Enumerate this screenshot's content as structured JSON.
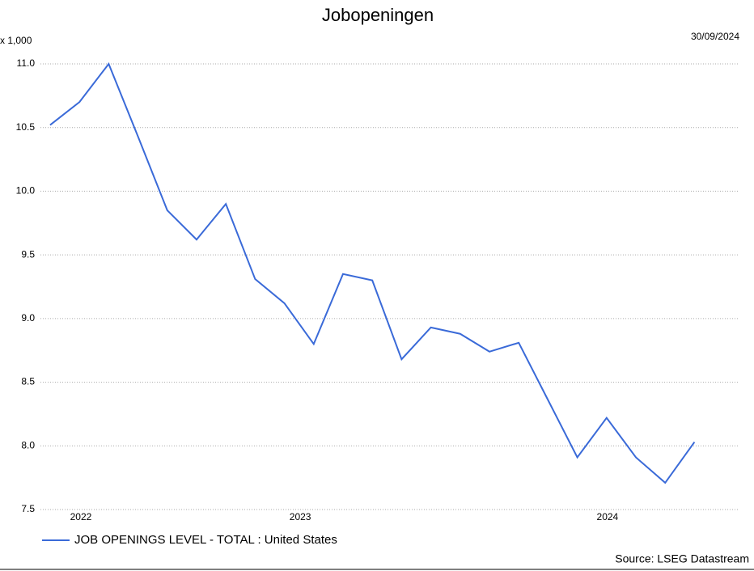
{
  "chart_data": {
    "type": "line",
    "title": "Jobopeningen",
    "unit_label": "x 1,000",
    "date": "30/09/2024",
    "source": "Source: LSEG Datastream",
    "x": [
      0,
      1,
      2,
      3,
      4,
      5,
      6,
      7,
      8,
      9,
      10,
      11,
      12,
      13,
      14,
      15,
      16,
      17,
      18,
      19,
      20,
      21,
      22
    ],
    "xlim": [
      -0.33,
      23.48
    ],
    "xticks": [
      {
        "value": 1.05,
        "label": "2022"
      },
      {
        "value": 8.54,
        "label": "2023"
      },
      {
        "value": 19.03,
        "label": "2024"
      }
    ],
    "ylim": [
      7.5,
      11.0
    ],
    "yticks": [
      {
        "value": 7.5,
        "label": "7.5"
      },
      {
        "value": 8.0,
        "label": "8.0"
      },
      {
        "value": 8.5,
        "label": "8.5"
      },
      {
        "value": 9.0,
        "label": "9.0"
      },
      {
        "value": 9.5,
        "label": "9.5"
      },
      {
        "value": 10.0,
        "label": "10.0"
      },
      {
        "value": 10.5,
        "label": "10.5"
      },
      {
        "value": 11.0,
        "label": "11.0"
      }
    ],
    "grid": true,
    "series": [
      {
        "name": "JOB OPENINGS LEVEL - TOTAL : United States",
        "color": "#3a6ad8",
        "values": [
          10.52,
          10.7,
          11.0,
          10.43,
          9.85,
          9.62,
          9.9,
          9.31,
          9.12,
          8.8,
          9.35,
          9.3,
          8.68,
          8.93,
          8.88,
          8.74,
          8.81,
          8.36,
          7.91,
          8.22,
          7.91,
          7.71,
          8.03
        ]
      }
    ]
  }
}
